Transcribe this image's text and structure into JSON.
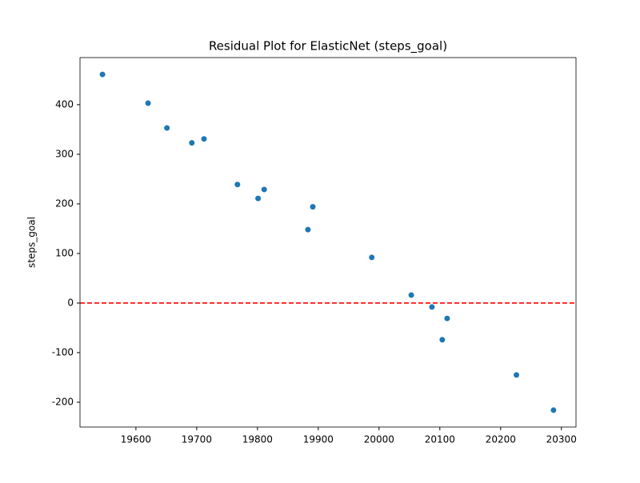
{
  "chart_data": {
    "type": "scatter",
    "title": "Residual Plot for ElasticNet (steps_goal)",
    "y_label": "steps_goal",
    "series": [
      {
        "color": "#1f77b4",
        "x": [
          19545,
          19620,
          19651,
          19692,
          19712,
          19767,
          19801,
          19811,
          19883,
          19891,
          19988,
          20053,
          20087,
          20104,
          20112,
          20226,
          20287
        ],
        "values": [
          461,
          403,
          353,
          323,
          331,
          239,
          211,
          229,
          148,
          194,
          92,
          16,
          -8,
          -74,
          -31,
          -145,
          -216
        ]
      }
    ],
    "hline": {
      "value": 0,
      "color": "#ff0000"
    },
    "xlim": [
      19508,
      20324
    ],
    "xticks": [
      19600,
      19700,
      19800,
      19900,
      20000,
      20100,
      20200,
      20300
    ],
    "ylim": [
      -250,
      495
    ],
    "yticks": [
      -200,
      -100,
      0,
      100,
      200,
      300,
      400
    ]
  }
}
